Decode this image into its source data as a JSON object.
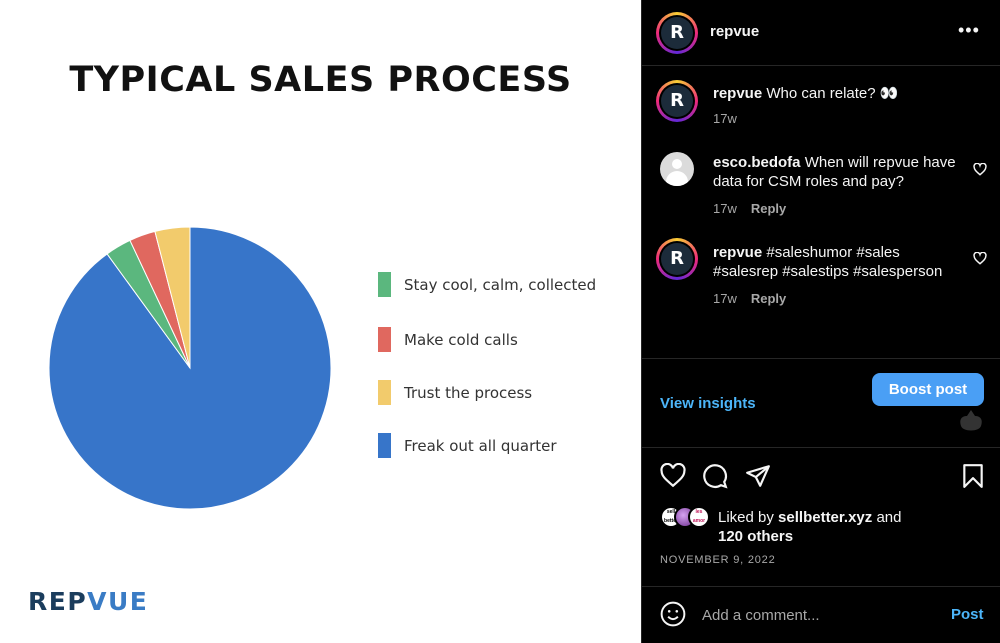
{
  "post_image": {
    "title": "TYPICAL SALES PROCESS",
    "logo_text_dark": "REP",
    "logo_text_accent": "VUE",
    "chart_data": {
      "type": "pie",
      "title": "TYPICAL SALES PROCESS",
      "legend_position": "right",
      "slices": [
        {
          "label": "Stay cool, calm, collected",
          "value": 3,
          "color": "#5bb77e"
        },
        {
          "label": "Make cold calls",
          "value": 3,
          "color": "#e0685f"
        },
        {
          "label": "Trust the process",
          "value": 4,
          "color": "#f2cb6c"
        },
        {
          "label": "Freak out all quarter",
          "value": 90,
          "color": "#3775c9"
        }
      ]
    }
  },
  "header": {
    "username": "repvue",
    "avatar_letter": "R",
    "more_icon": "more-horizontal-icon"
  },
  "comments": [
    {
      "username": "repvue",
      "text": "Who can relate? 👀",
      "time": "17w",
      "avatar": "R"
    },
    {
      "username": "esco.bedofa",
      "text": "When will repvue have data for CSM roles and pay?",
      "time": "17w",
      "reply": "Reply"
    },
    {
      "username": "repvue",
      "text": "#saleshumor #sales #salesrep #salestips #salesperson",
      "time": "17w",
      "reply": "Reply",
      "avatar": "R"
    }
  ],
  "insights": {
    "view_insights": "View insights",
    "boost": "Boost post"
  },
  "likes": {
    "prefix": "Liked by",
    "user": "sellbetter.xyz",
    "and": "and",
    "others": "120 others",
    "mini_avatar_1": "sell better",
    "mini_avatar_2": "",
    "mini_avatar_3": "les amor"
  },
  "date": "NOVEMBER 9, 2022",
  "composer": {
    "placeholder": "Add a comment...",
    "post": "Post"
  },
  "colors": {
    "link": "#4cb5f9",
    "boost_bg": "#4a9ff5",
    "muted": "#a8a8a8"
  }
}
